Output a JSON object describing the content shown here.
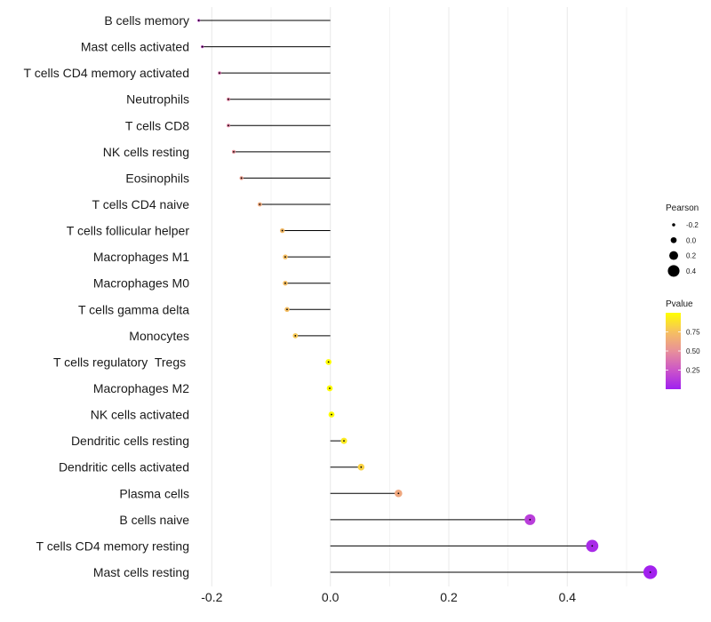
{
  "chart_data": {
    "type": "lollipop",
    "title": "",
    "xlabel": "",
    "ylabel": "",
    "xlim": [
      -0.22,
      0.545
    ],
    "xticks": [
      -0.2,
      0.0,
      0.2,
      0.4
    ],
    "xtick_labels": [
      "-0.2",
      "0.0",
      "0.2",
      "0.4"
    ],
    "grid": true,
    "points": [
      {
        "cell": "B cells memory",
        "pearson": -0.222,
        "pvalue": 0.2
      },
      {
        "cell": "Mast cells activated",
        "pearson": -0.216,
        "pvalue": 0.23
      },
      {
        "cell": "T cells CD4 memory activated",
        "pearson": -0.187,
        "pvalue": 0.38
      },
      {
        "cell": "Neutrophils",
        "pearson": -0.172,
        "pvalue": 0.45
      },
      {
        "cell": "T cells CD8",
        "pearson": -0.172,
        "pvalue": 0.45
      },
      {
        "cell": "NK cells resting",
        "pearson": -0.163,
        "pvalue": 0.5
      },
      {
        "cell": "Eosinophils",
        "pearson": -0.15,
        "pvalue": 0.56
      },
      {
        "cell": "T cells CD4 naive",
        "pearson": -0.119,
        "pvalue": 0.63
      },
      {
        "cell": "T cells follicular helper",
        "pearson": -0.081,
        "pvalue": 0.72
      },
      {
        "cell": "Macrophages M1",
        "pearson": -0.076,
        "pvalue": 0.74
      },
      {
        "cell": "Macrophages M0",
        "pearson": -0.076,
        "pvalue": 0.74
      },
      {
        "cell": "T cells gamma delta",
        "pearson": -0.073,
        "pvalue": 0.74
      },
      {
        "cell": "Monocytes",
        "pearson": -0.059,
        "pvalue": 0.78
      },
      {
        "cell": "T cells regulatory  Tregs ",
        "pearson": -0.003,
        "pvalue": 0.99
      },
      {
        "cell": "Macrophages M2",
        "pearson": -0.001,
        "pvalue": 0.99
      },
      {
        "cell": "NK cells activated",
        "pearson": 0.002,
        "pvalue": 0.99
      },
      {
        "cell": "Dendritic cells resting",
        "pearson": 0.023,
        "pvalue": 0.92
      },
      {
        "cell": "Dendritic cells activated",
        "pearson": 0.052,
        "pvalue": 0.82
      },
      {
        "cell": "Plasma cells",
        "pearson": 0.115,
        "pvalue": 0.62
      },
      {
        "cell": "B cells naive",
        "pearson": 0.337,
        "pvalue": 0.14
      },
      {
        "cell": "T cells CD4 memory resting",
        "pearson": 0.442,
        "pvalue": 0.05
      },
      {
        "cell": "Mast cells resting",
        "pearson": 0.54,
        "pvalue": 0.01
      }
    ],
    "legend_size": {
      "title": "Pearson",
      "entries": [
        {
          "label": "-0.2",
          "value": -0.2
        },
        {
          "label": "0.0",
          "value": 0.0
        },
        {
          "label": "0.2",
          "value": 0.2
        },
        {
          "label": "0.4",
          "value": 0.4
        }
      ]
    },
    "legend_color": {
      "title": "Pvalue",
      "range": [
        0.0,
        1.0
      ],
      "ticks": [
        {
          "label": "0.75",
          "value": 0.75
        },
        {
          "label": "0.50",
          "value": 0.5
        },
        {
          "label": "0.25",
          "value": 0.25
        }
      ],
      "colors": [
        "#a020f0",
        "#cc55c8",
        "#e8909a",
        "#f6c060",
        "#ffff00"
      ]
    },
    "stem_color": "#000000",
    "grid_color": "#ebebeb"
  }
}
